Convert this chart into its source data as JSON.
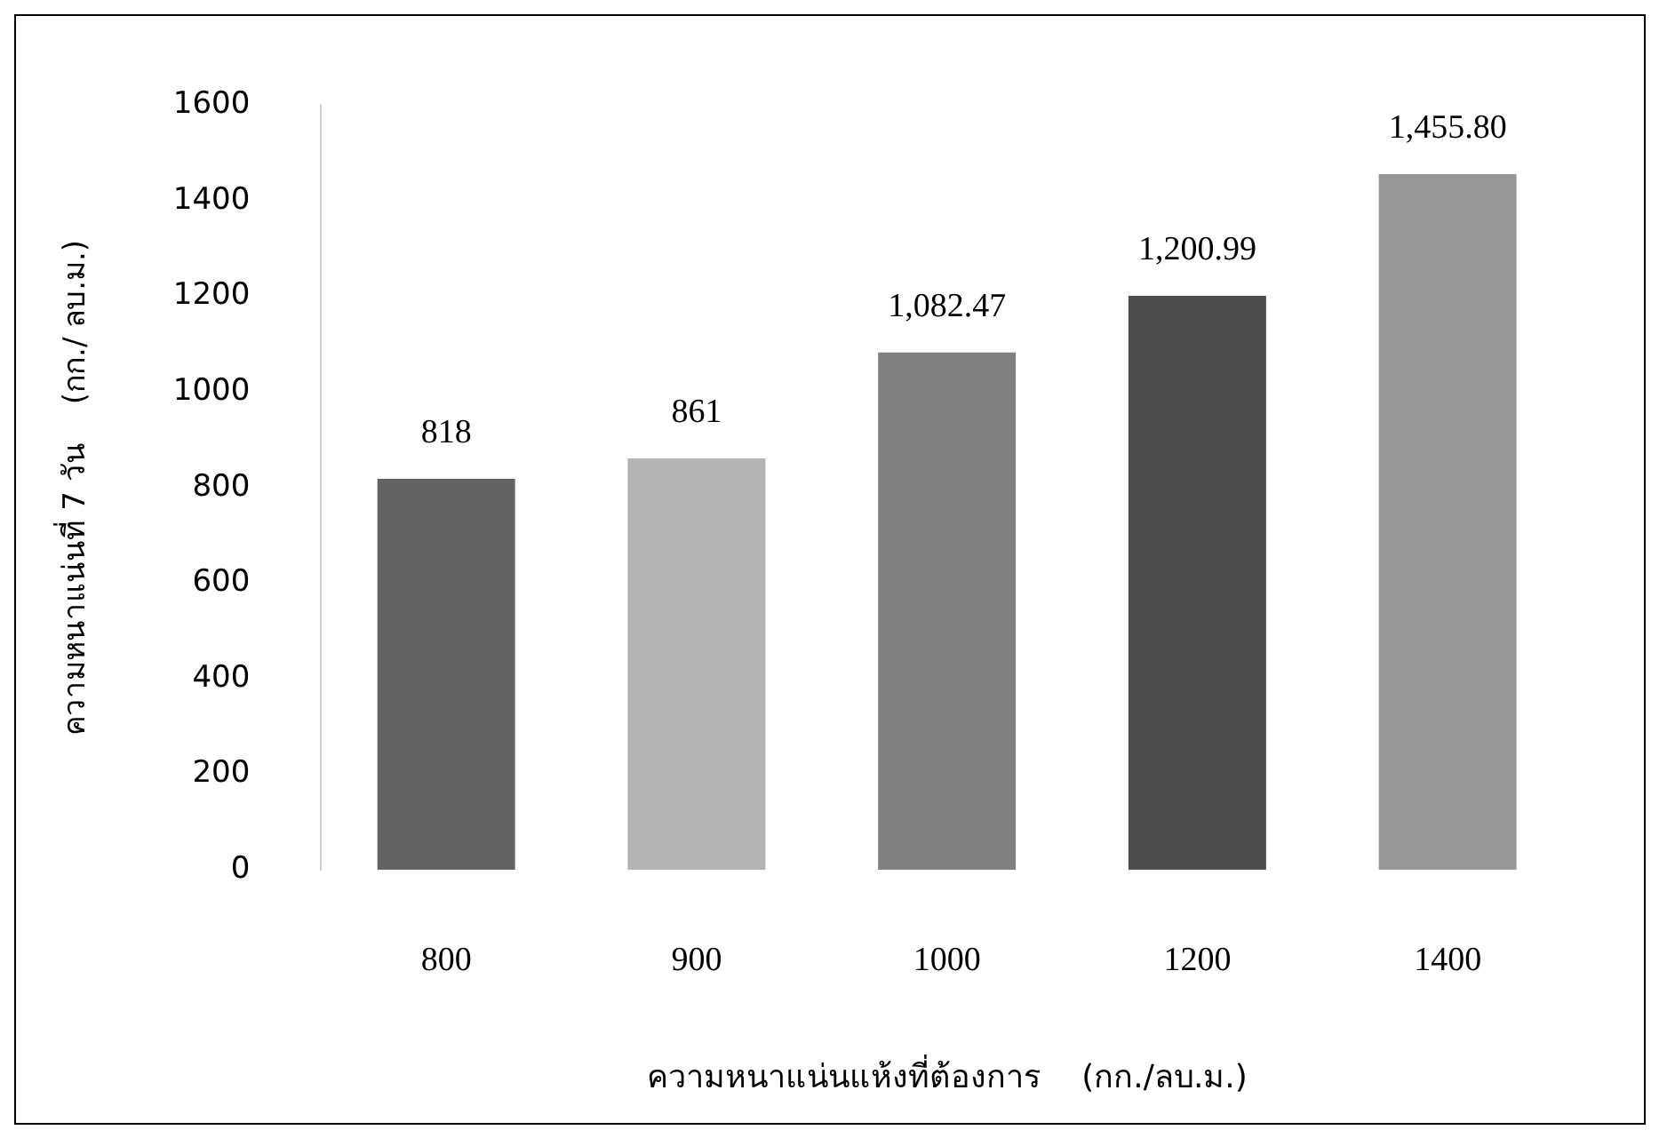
{
  "chart_data": {
    "type": "bar",
    "xlabel": "ความหนาแน่นแห้งที่ต้องการ    (กก./ลบ.ม.)",
    "ylabel": "ความหนาแน่นที่ 7 วัน    (กก./ ลบ.ม.)",
    "categories": [
      "800",
      "900",
      "1000",
      "1200",
      "1400"
    ],
    "values": [
      818,
      861,
      1082.47,
      1200.99,
      1455.8
    ],
    "colors": [
      "#636363",
      "#b3b3b3",
      "#808080",
      "#4d4d4d",
      "#969696"
    ],
    "value_labels": [
      "818",
      "861",
      "1,082.47",
      "1,200.99",
      "1,455.80"
    ],
    "ylim": [
      0,
      1600
    ],
    "yticks": [
      0,
      200,
      400,
      600,
      800,
      1000,
      1200,
      1400,
      1600
    ],
    "grid": false,
    "legend": false
  }
}
